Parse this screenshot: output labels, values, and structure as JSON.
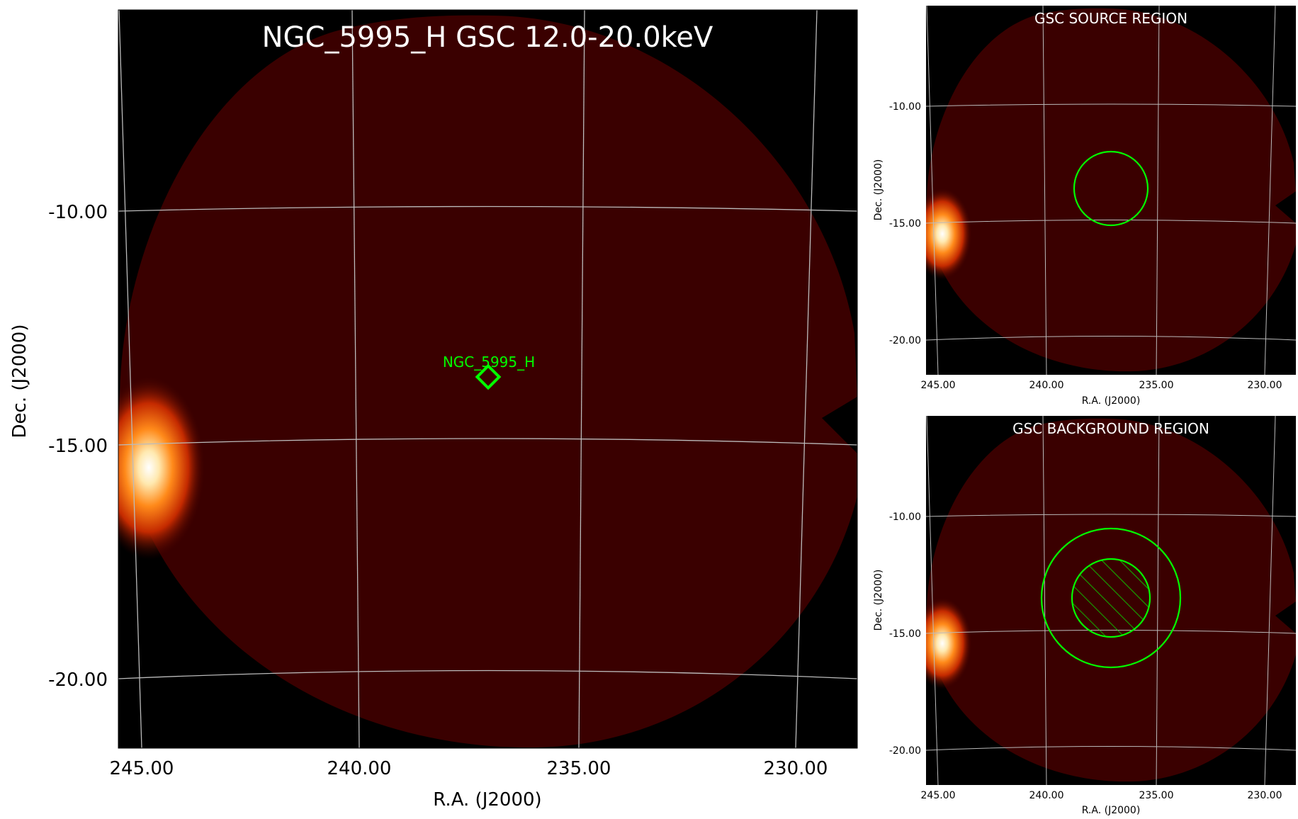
{
  "main_panel": {
    "title": "NGC_5995_H GSC 12.0-20.0keV",
    "source_label": "NGC_5995_H",
    "xlabel": "R.A. (J2000)",
    "ylabel": "Dec. (J2000)",
    "ra_ticks": [
      "245.00",
      "240.00",
      "235.00",
      "230.00"
    ],
    "dec_ticks": [
      "-10.00",
      "-15.00",
      "-20.00"
    ]
  },
  "source_panel": {
    "title": "GSC SOURCE REGION",
    "xlabel": "R.A. (J2000)",
    "ylabel": "Dec. (J2000)",
    "ra_ticks": [
      "245.00",
      "240.00",
      "235.00",
      "230.00"
    ],
    "dec_ticks": [
      "-10.00",
      "-15.00",
      "-20.00"
    ]
  },
  "background_panel": {
    "title": "GSC BACKGROUND REGION",
    "xlabel": "R.A. (J2000)",
    "ylabel": "Dec. (J2000)",
    "ra_ticks": [
      "245.00",
      "240.00",
      "235.00",
      "230.00"
    ],
    "dec_ticks": [
      "-10.00",
      "-15.00",
      "-20.00"
    ]
  },
  "colors": {
    "sky_background": "#000000",
    "field_fill": "#3a0000",
    "region_green": "#00ff00",
    "grid": "#bbbbbb"
  }
}
